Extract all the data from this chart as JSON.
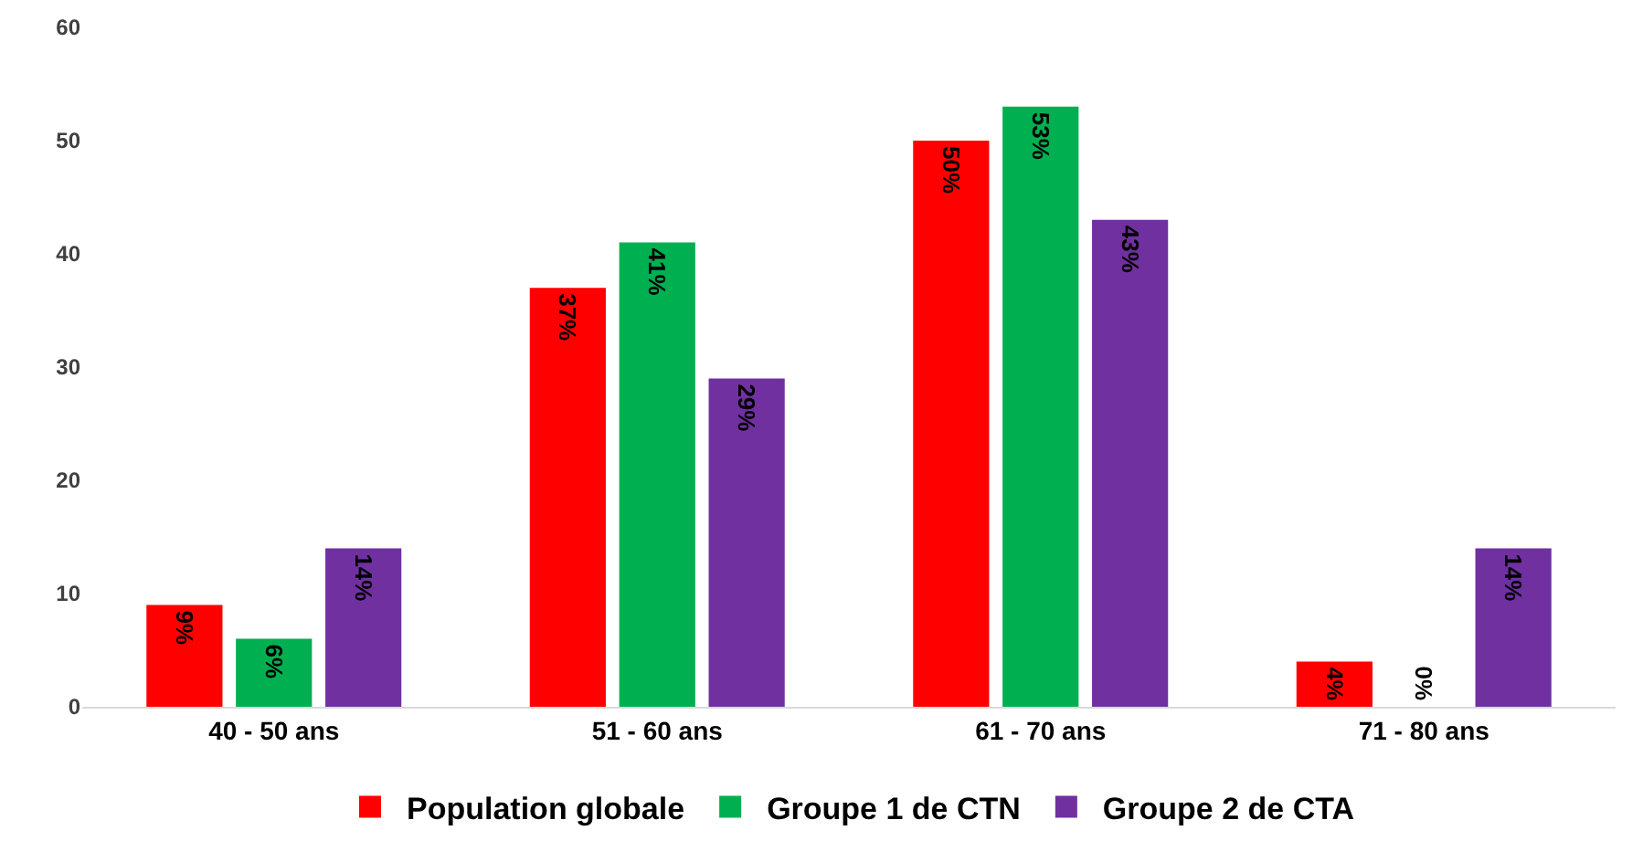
{
  "chart_data": {
    "type": "bar",
    "categories": [
      "40 - 50 ans",
      "51 - 60 ans",
      "61 - 70 ans",
      "71 - 80 ans"
    ],
    "series": [
      {
        "name": "Population globale",
        "color": "#ff0000",
        "values": [
          9,
          37,
          50,
          4
        ],
        "value_labels": [
          "9%",
          "37%",
          "50%",
          "4%"
        ]
      },
      {
        "name": "Groupe 1 de CTN",
        "color": "#00b050",
        "values": [
          6,
          41,
          53,
          0
        ],
        "value_labels": [
          "6%",
          "41%",
          "53%",
          "0%"
        ]
      },
      {
        "name": "Groupe 2 de CTA",
        "color": "#7030a0",
        "values": [
          14,
          29,
          43,
          14
        ],
        "value_labels": [
          "14%",
          "29%",
          "43%",
          "14%"
        ]
      }
    ],
    "ylim": [
      0,
      60
    ],
    "yticks": [
      0,
      10,
      20,
      30,
      40,
      50,
      60
    ],
    "grid": false,
    "legend": "bottom"
  }
}
